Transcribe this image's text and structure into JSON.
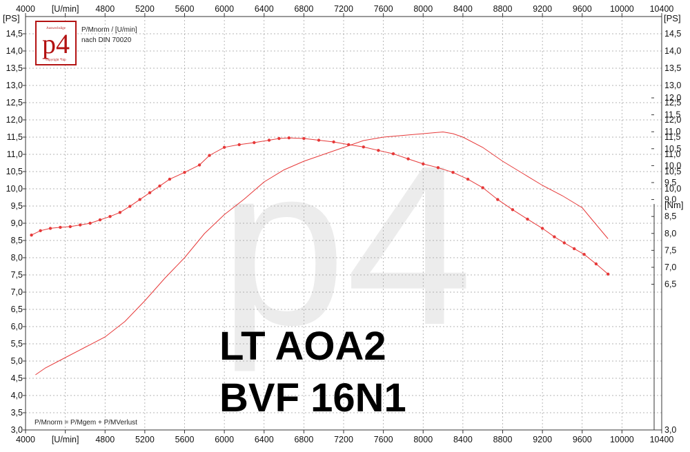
{
  "chart_data": {
    "type": "line",
    "title": "LT AOA2 BVF 16N1",
    "title_lines": [
      "LT AOA2",
      "BVF 16N1"
    ],
    "xlabel": "[U/min]",
    "ylabel_left": "[PS]",
    "ylabel_right": "[PS]",
    "ylabel_torque": "[Nm]",
    "legend_text": [
      "P/Mnorm / [U/min]",
      "nach DIN 70020"
    ],
    "footnote": "P/Mnorm = P/Mgem + P/MVerlust",
    "watermark": "p4",
    "logo": {
      "text": "p4",
      "top_text": "Auswechslige",
      "bottom_text": "copyright *hip"
    },
    "grid": true,
    "xlim": [
      4000,
      10400
    ],
    "ylim": [
      3.0,
      15.0
    ],
    "torque_ylim": [
      2.2,
      14.4
    ],
    "x_ticks": [
      "4000",
      "[U/min]",
      "4800",
      "5200",
      "5600",
      "6000",
      "6400",
      "6800",
      "7200",
      "7600",
      "8000",
      "8400",
      "8800",
      "9200",
      "9600",
      "10000",
      "10400"
    ],
    "y_ticks_left": [
      "3,0",
      "3,5",
      "4,0",
      "4,5",
      "5,0",
      "5,5",
      "6,0",
      "6,5",
      "7,0",
      "7,5",
      "8,0",
      "8,5",
      "9,0",
      "9,5",
      "10,0",
      "10,5",
      "11,0",
      "11,5",
      "12,0",
      "12,5",
      "13,0",
      "13,5",
      "14,0",
      "14,5"
    ],
    "torque_ticks": [
      "6,5",
      "7,0",
      "7,5",
      "8,0",
      "8,5",
      "9,0",
      "9,5",
      "10,0",
      "10,5",
      "11,0",
      "11,5",
      "12,0"
    ],
    "series": [
      {
        "axis": "PS",
        "color": "#e63838",
        "markers": false,
        "x": [
          4100,
          4200,
          4400,
          4600,
          4800,
          5000,
          5200,
          5400,
          5600,
          5800,
          6000,
          6200,
          6400,
          6600,
          6800,
          7000,
          7200,
          7400,
          7600,
          7800,
          8000,
          8200,
          8300,
          8400,
          8600,
          8800,
          9000,
          9200,
          9400,
          9600,
          9700,
          9860
        ],
        "y": [
          4.6,
          4.8,
          5.1,
          5.4,
          5.7,
          6.15,
          6.75,
          7.4,
          8.0,
          8.7,
          9.25,
          9.7,
          10.2,
          10.55,
          10.8,
          11.0,
          11.2,
          11.4,
          11.5,
          11.55,
          11.6,
          11.65,
          11.6,
          11.5,
          11.2,
          10.8,
          10.45,
          10.1,
          9.8,
          9.45,
          9.1,
          8.55
        ]
      },
      {
        "axis": "Nm",
        "color": "#e63838",
        "markers": true,
        "x": [
          4060,
          4150,
          4250,
          4350,
          4450,
          4550,
          4650,
          4750,
          4850,
          4950,
          5050,
          5150,
          5250,
          5350,
          5450,
          5600,
          5750,
          5850,
          6000,
          6150,
          6300,
          6450,
          6550,
          6650,
          6800,
          6950,
          7100,
          7250,
          7400,
          7550,
          7700,
          7850,
          8000,
          8150,
          8300,
          8450,
          8600,
          8750,
          8900,
          9050,
          9200,
          9320,
          9420,
          9520,
          9620,
          9740,
          9860
        ],
        "y": [
          7.95,
          8.08,
          8.15,
          8.18,
          8.2,
          8.25,
          8.3,
          8.4,
          8.5,
          8.62,
          8.8,
          9.0,
          9.2,
          9.4,
          9.6,
          9.8,
          10.02,
          10.3,
          10.54,
          10.62,
          10.68,
          10.75,
          10.8,
          10.82,
          10.8,
          10.75,
          10.7,
          10.62,
          10.55,
          10.45,
          10.35,
          10.2,
          10.05,
          9.94,
          9.8,
          9.6,
          9.35,
          9.0,
          8.7,
          8.42,
          8.15,
          7.9,
          7.72,
          7.55,
          7.38,
          7.1,
          6.8
        ]
      }
    ]
  }
}
